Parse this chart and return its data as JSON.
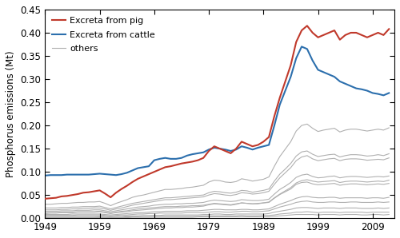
{
  "ylabel": "Phosphorus emissions (Mt)",
  "xlim": [
    1949,
    2013
  ],
  "ylim": [
    0.0,
    0.45
  ],
  "yticks": [
    0.0,
    0.05,
    0.1,
    0.15,
    0.2,
    0.25,
    0.3,
    0.35,
    0.4,
    0.45
  ],
  "xticks": [
    1949,
    1959,
    1969,
    1979,
    1989,
    1999,
    2009
  ],
  "pig_color": "#c0392b",
  "cattle_color": "#2c6fad",
  "others_color": "#b0b0b0",
  "pig_label": "Excreta from pig",
  "cattle_label": "Excreta from cattle",
  "others_label": "others",
  "years": [
    1949,
    1950,
    1951,
    1952,
    1953,
    1954,
    1955,
    1956,
    1957,
    1958,
    1959,
    1960,
    1961,
    1962,
    1963,
    1964,
    1965,
    1966,
    1967,
    1968,
    1969,
    1970,
    1971,
    1972,
    1973,
    1974,
    1975,
    1976,
    1977,
    1978,
    1979,
    1980,
    1981,
    1982,
    1983,
    1984,
    1985,
    1986,
    1987,
    1988,
    1989,
    1990,
    1991,
    1992,
    1993,
    1994,
    1995,
    1996,
    1997,
    1998,
    1999,
    2000,
    2001,
    2002,
    2003,
    2004,
    2005,
    2006,
    2007,
    2008,
    2009,
    2010,
    2011,
    2012
  ],
  "pig": [
    0.042,
    0.043,
    0.044,
    0.047,
    0.048,
    0.05,
    0.052,
    0.055,
    0.056,
    0.058,
    0.06,
    0.053,
    0.045,
    0.055,
    0.063,
    0.07,
    0.078,
    0.085,
    0.09,
    0.095,
    0.1,
    0.105,
    0.11,
    0.112,
    0.115,
    0.118,
    0.12,
    0.122,
    0.125,
    0.13,
    0.145,
    0.155,
    0.15,
    0.145,
    0.14,
    0.15,
    0.165,
    0.16,
    0.155,
    0.158,
    0.165,
    0.175,
    0.22,
    0.26,
    0.295,
    0.33,
    0.38,
    0.405,
    0.415,
    0.4,
    0.39,
    0.395,
    0.4,
    0.405,
    0.385,
    0.395,
    0.4,
    0.4,
    0.395,
    0.39,
    0.395,
    0.4,
    0.395,
    0.408
  ],
  "cattle": [
    0.092,
    0.093,
    0.093,
    0.093,
    0.094,
    0.094,
    0.094,
    0.094,
    0.094,
    0.095,
    0.096,
    0.095,
    0.094,
    0.093,
    0.095,
    0.098,
    0.103,
    0.108,
    0.11,
    0.112,
    0.125,
    0.128,
    0.13,
    0.128,
    0.128,
    0.13,
    0.135,
    0.138,
    0.14,
    0.142,
    0.148,
    0.152,
    0.15,
    0.148,
    0.145,
    0.148,
    0.155,
    0.152,
    0.148,
    0.152,
    0.155,
    0.158,
    0.2,
    0.245,
    0.275,
    0.305,
    0.345,
    0.37,
    0.365,
    0.34,
    0.32,
    0.315,
    0.31,
    0.305,
    0.295,
    0.29,
    0.285,
    0.28,
    0.278,
    0.275,
    0.27,
    0.268,
    0.265,
    0.27
  ],
  "others": [
    [
      0.03,
      0.03,
      0.031,
      0.032,
      0.032,
      0.033,
      0.034,
      0.034,
      0.035,
      0.035,
      0.036,
      0.032,
      0.027,
      0.032,
      0.036,
      0.04,
      0.045,
      0.048,
      0.05,
      0.053,
      0.056,
      0.059,
      0.062,
      0.062,
      0.063,
      0.064,
      0.066,
      0.067,
      0.069,
      0.071,
      0.078,
      0.082,
      0.081,
      0.078,
      0.077,
      0.079,
      0.085,
      0.083,
      0.08,
      0.082,
      0.084,
      0.089,
      0.112,
      0.133,
      0.149,
      0.165,
      0.188,
      0.2,
      0.203,
      0.194,
      0.187,
      0.19,
      0.192,
      0.194,
      0.186,
      0.19,
      0.192,
      0.192,
      0.19,
      0.188,
      0.19,
      0.192,
      0.19,
      0.195
    ],
    [
      0.022,
      0.022,
      0.022,
      0.023,
      0.023,
      0.024,
      0.024,
      0.025,
      0.025,
      0.025,
      0.026,
      0.023,
      0.02,
      0.023,
      0.026,
      0.029,
      0.032,
      0.034,
      0.036,
      0.038,
      0.04,
      0.042,
      0.044,
      0.044,
      0.045,
      0.046,
      0.047,
      0.048,
      0.049,
      0.05,
      0.055,
      0.058,
      0.057,
      0.055,
      0.054,
      0.056,
      0.06,
      0.059,
      0.056,
      0.058,
      0.06,
      0.063,
      0.08,
      0.095,
      0.106,
      0.118,
      0.134,
      0.143,
      0.145,
      0.138,
      0.133,
      0.135,
      0.137,
      0.138,
      0.132,
      0.135,
      0.137,
      0.137,
      0.136,
      0.134,
      0.135,
      0.137,
      0.135,
      0.139
    ],
    [
      0.018,
      0.018,
      0.018,
      0.019,
      0.019,
      0.02,
      0.02,
      0.021,
      0.021,
      0.022,
      0.022,
      0.02,
      0.017,
      0.02,
      0.022,
      0.025,
      0.028,
      0.03,
      0.032,
      0.034,
      0.036,
      0.038,
      0.04,
      0.04,
      0.041,
      0.042,
      0.043,
      0.044,
      0.045,
      0.046,
      0.05,
      0.053,
      0.052,
      0.05,
      0.049,
      0.051,
      0.055,
      0.054,
      0.052,
      0.053,
      0.055,
      0.058,
      0.073,
      0.087,
      0.098,
      0.109,
      0.124,
      0.132,
      0.135,
      0.128,
      0.124,
      0.126,
      0.128,
      0.129,
      0.124,
      0.127,
      0.128,
      0.128,
      0.127,
      0.125,
      0.126,
      0.127,
      0.126,
      0.13
    ],
    [
      0.015,
      0.015,
      0.015,
      0.016,
      0.016,
      0.016,
      0.017,
      0.017,
      0.017,
      0.018,
      0.018,
      0.016,
      0.014,
      0.016,
      0.018,
      0.02,
      0.022,
      0.024,
      0.025,
      0.026,
      0.028,
      0.029,
      0.03,
      0.03,
      0.031,
      0.031,
      0.032,
      0.032,
      0.033,
      0.034,
      0.037,
      0.039,
      0.038,
      0.037,
      0.036,
      0.037,
      0.04,
      0.039,
      0.038,
      0.038,
      0.039,
      0.041,
      0.052,
      0.062,
      0.069,
      0.077,
      0.088,
      0.093,
      0.095,
      0.09,
      0.087,
      0.088,
      0.09,
      0.091,
      0.087,
      0.089,
      0.09,
      0.09,
      0.089,
      0.088,
      0.089,
      0.09,
      0.089,
      0.091
    ],
    [
      0.012,
      0.012,
      0.012,
      0.013,
      0.013,
      0.013,
      0.014,
      0.014,
      0.014,
      0.014,
      0.015,
      0.013,
      0.011,
      0.013,
      0.015,
      0.016,
      0.018,
      0.02,
      0.021,
      0.022,
      0.023,
      0.024,
      0.025,
      0.025,
      0.025,
      0.026,
      0.026,
      0.027,
      0.027,
      0.028,
      0.03,
      0.032,
      0.031,
      0.03,
      0.029,
      0.031,
      0.033,
      0.032,
      0.031,
      0.032,
      0.033,
      0.034,
      0.043,
      0.051,
      0.057,
      0.063,
      0.073,
      0.077,
      0.078,
      0.074,
      0.072,
      0.073,
      0.074,
      0.075,
      0.071,
      0.073,
      0.074,
      0.074,
      0.073,
      0.072,
      0.073,
      0.074,
      0.073,
      0.075
    ],
    [
      0.01,
      0.011,
      0.011,
      0.012,
      0.012,
      0.012,
      0.013,
      0.013,
      0.013,
      0.013,
      0.014,
      0.012,
      0.01,
      0.012,
      0.013,
      0.014,
      0.016,
      0.017,
      0.018,
      0.019,
      0.02,
      0.021,
      0.022,
      0.022,
      0.023,
      0.023,
      0.024,
      0.024,
      0.025,
      0.026,
      0.029,
      0.031,
      0.03,
      0.029,
      0.028,
      0.03,
      0.033,
      0.032,
      0.031,
      0.031,
      0.033,
      0.035,
      0.044,
      0.052,
      0.059,
      0.066,
      0.076,
      0.081,
      0.083,
      0.08,
      0.078,
      0.079,
      0.08,
      0.081,
      0.077,
      0.079,
      0.08,
      0.08,
      0.079,
      0.078,
      0.079,
      0.08,
      0.079,
      0.082
    ],
    [
      0.008,
      0.008,
      0.008,
      0.008,
      0.008,
      0.009,
      0.009,
      0.009,
      0.009,
      0.009,
      0.009,
      0.008,
      0.007,
      0.008,
      0.009,
      0.01,
      0.011,
      0.012,
      0.012,
      0.013,
      0.014,
      0.014,
      0.015,
      0.015,
      0.015,
      0.015,
      0.016,
      0.016,
      0.016,
      0.017,
      0.018,
      0.019,
      0.019,
      0.018,
      0.018,
      0.018,
      0.019,
      0.019,
      0.018,
      0.018,
      0.019,
      0.02,
      0.025,
      0.03,
      0.034,
      0.038,
      0.043,
      0.046,
      0.047,
      0.045,
      0.044,
      0.044,
      0.045,
      0.045,
      0.043,
      0.044,
      0.044,
      0.044,
      0.044,
      0.043,
      0.044,
      0.044,
      0.043,
      0.045
    ],
    [
      0.006,
      0.006,
      0.006,
      0.006,
      0.006,
      0.006,
      0.007,
      0.007,
      0.007,
      0.007,
      0.007,
      0.006,
      0.005,
      0.006,
      0.007,
      0.007,
      0.008,
      0.009,
      0.009,
      0.01,
      0.01,
      0.011,
      0.011,
      0.011,
      0.011,
      0.011,
      0.012,
      0.012,
      0.012,
      0.012,
      0.013,
      0.014,
      0.014,
      0.013,
      0.013,
      0.014,
      0.015,
      0.015,
      0.014,
      0.014,
      0.015,
      0.016,
      0.02,
      0.024,
      0.027,
      0.03,
      0.034,
      0.036,
      0.037,
      0.035,
      0.034,
      0.034,
      0.035,
      0.035,
      0.034,
      0.034,
      0.035,
      0.035,
      0.034,
      0.034,
      0.034,
      0.035,
      0.034,
      0.035
    ],
    [
      0.004,
      0.004,
      0.004,
      0.004,
      0.004,
      0.004,
      0.004,
      0.004,
      0.004,
      0.004,
      0.004,
      0.004,
      0.003,
      0.004,
      0.004,
      0.005,
      0.005,
      0.005,
      0.006,
      0.006,
      0.006,
      0.006,
      0.007,
      0.007,
      0.007,
      0.007,
      0.007,
      0.007,
      0.007,
      0.008,
      0.008,
      0.009,
      0.009,
      0.008,
      0.008,
      0.009,
      0.009,
      0.009,
      0.009,
      0.009,
      0.009,
      0.01,
      0.013,
      0.015,
      0.017,
      0.019,
      0.022,
      0.023,
      0.023,
      0.022,
      0.021,
      0.022,
      0.022,
      0.022,
      0.021,
      0.022,
      0.022,
      0.022,
      0.021,
      0.021,
      0.021,
      0.022,
      0.021,
      0.022
    ],
    [
      0.002,
      0.002,
      0.002,
      0.002,
      0.002,
      0.002,
      0.002,
      0.002,
      0.002,
      0.002,
      0.003,
      0.002,
      0.002,
      0.002,
      0.002,
      0.003,
      0.003,
      0.003,
      0.003,
      0.003,
      0.004,
      0.004,
      0.004,
      0.004,
      0.004,
      0.004,
      0.004,
      0.004,
      0.004,
      0.005,
      0.005,
      0.005,
      0.005,
      0.005,
      0.005,
      0.005,
      0.006,
      0.005,
      0.005,
      0.005,
      0.006,
      0.006,
      0.007,
      0.009,
      0.01,
      0.011,
      0.013,
      0.013,
      0.014,
      0.013,
      0.012,
      0.013,
      0.013,
      0.013,
      0.012,
      0.013,
      0.013,
      0.013,
      0.013,
      0.012,
      0.013,
      0.013,
      0.013,
      0.013
    ],
    [
      0.001,
      0.001,
      0.001,
      0.001,
      0.001,
      0.001,
      0.001,
      0.001,
      0.001,
      0.001,
      0.001,
      0.001,
      0.001,
      0.001,
      0.001,
      0.001,
      0.002,
      0.002,
      0.002,
      0.002,
      0.002,
      0.002,
      0.002,
      0.002,
      0.002,
      0.002,
      0.002,
      0.002,
      0.003,
      0.003,
      0.003,
      0.003,
      0.003,
      0.003,
      0.003,
      0.003,
      0.003,
      0.003,
      0.003,
      0.003,
      0.003,
      0.003,
      0.004,
      0.005,
      0.006,
      0.007,
      0.008,
      0.008,
      0.008,
      0.008,
      0.007,
      0.008,
      0.008,
      0.008,
      0.007,
      0.008,
      0.008,
      0.008,
      0.007,
      0.007,
      0.008,
      0.008,
      0.007,
      0.008
    ]
  ]
}
